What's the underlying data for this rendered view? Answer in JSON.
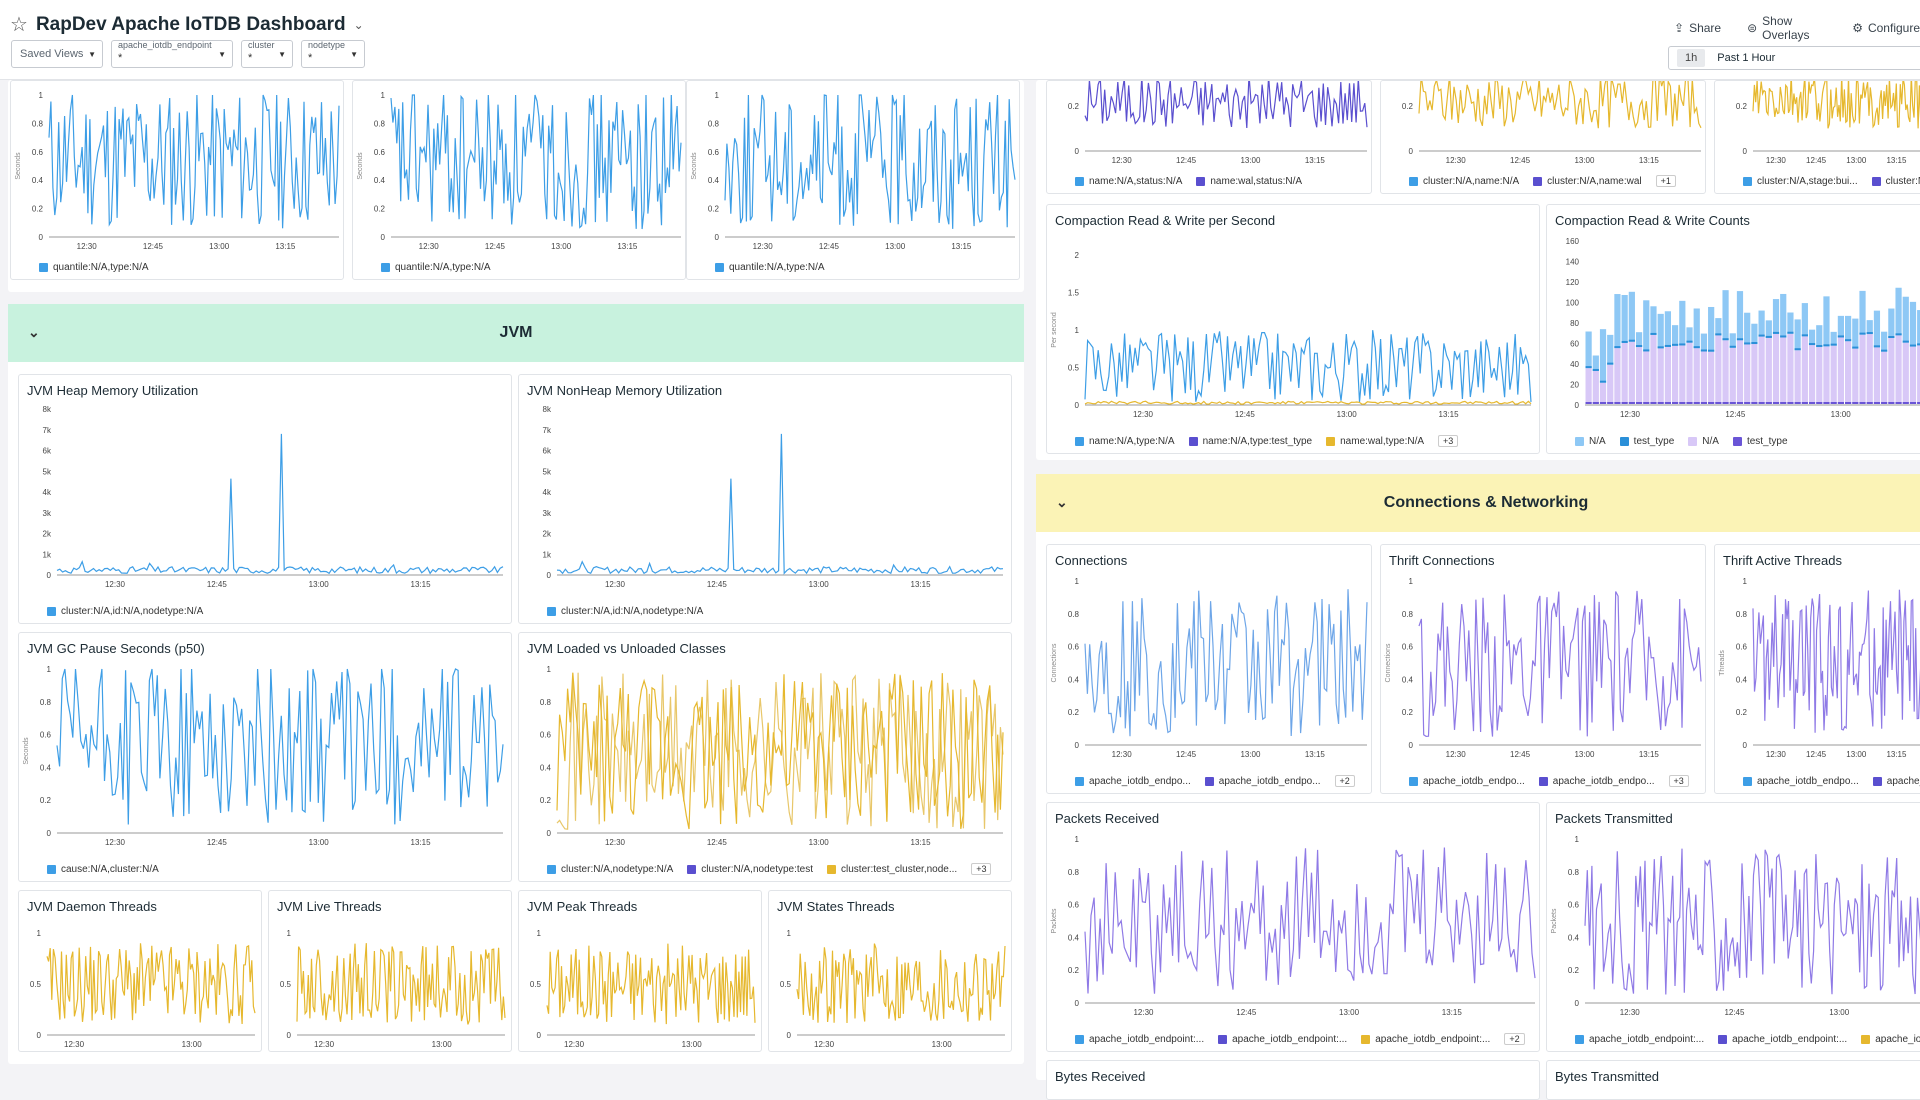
{
  "header": {
    "title": "RapDev Apache IoTDB Dashboard",
    "saved_views": "Saved Views",
    "variables": [
      {
        "label": "apache_iotdb_endpoint",
        "value": "*"
      },
      {
        "label": "cluster",
        "value": "*"
      },
      {
        "label": "nodetype",
        "value": "*"
      }
    ],
    "share": "Share",
    "overlays": "Show Overlays",
    "configure": "Configure",
    "time_chip": "1h",
    "time_range": "Past 1 Hour"
  },
  "groups": {
    "jvm": "JVM",
    "connections": "Connections & Networking"
  },
  "colors": {
    "blue": "#3d9ee6",
    "purple": "#8f7ae6",
    "indigo": "#5a4fcf",
    "gold": "#e6b82e",
    "jvm_header": "#c8f2de",
    "conn_header": "#fbf3b6"
  },
  "panels": {
    "top_left": [
      {
        "ylabel": "Seconds",
        "legend": [
          "quantile:N/A,type:N/A"
        ]
      },
      {
        "ylabel": "Seconds",
        "legend": [
          "quantile:N/A,type:N/A"
        ]
      },
      {
        "ylabel": "Seconds",
        "legend": [
          "quantile:N/A,type:N/A"
        ]
      }
    ],
    "heap": {
      "title": "JVM Heap Memory Utilization",
      "legend": [
        "cluster:N/A,id:N/A,nodetype:N/A"
      ]
    },
    "nonheap": {
      "title": "JVM NonHeap Memory Utilization",
      "legend": [
        "cluster:N/A,id:N/A,nodetype:N/A"
      ]
    },
    "gc": {
      "title": "JVM GC Pause Seconds (p50)",
      "ylabel": "Seconds",
      "legend": [
        "cause:N/A,cluster:N/A"
      ]
    },
    "classes": {
      "title": "JVM Loaded vs Unloaded Classes",
      "legend": [
        "cluster:N/A,nodetype:N/A",
        "cluster:N/A,nodetype:test",
        "cluster:test_cluster,node..."
      ],
      "more": "+3"
    },
    "daemon": {
      "title": "JVM Daemon Threads"
    },
    "live": {
      "title": "JVM Live Threads"
    },
    "peak": {
      "title": "JVM Peak Threads"
    },
    "states": {
      "title": "JVM States Threads"
    },
    "top_right": [
      {
        "legend": [
          "name:N/A,status:N/A",
          "name:wal,status:N/A"
        ]
      },
      {
        "legend": [
          "cluster:N/A,name:N/A",
          "cluster:N/A,name:wal"
        ],
        "more": "+1"
      },
      {
        "legend": [
          "cluster:N/A,stage:bui...",
          "cluster:N/..."
        ]
      }
    ],
    "compaction_rate": {
      "title": "Compaction Read & Write per Second",
      "ylabel": "Per second",
      "legend": [
        "name:N/A,type:N/A",
        "name:N/A,type:test_type",
        "name:wal,type:N/A"
      ],
      "more": "+3"
    },
    "compaction_counts": {
      "title": "Compaction Read & Write Counts",
      "legend": [
        "N/A",
        "test_type",
        "N/A",
        "test_type"
      ]
    },
    "connections": {
      "title": "Connections",
      "ylabel": "Connections",
      "legend": [
        "apache_iotdb_endpo...",
        "apache_iotdb_endpo..."
      ],
      "more": "+2"
    },
    "thrift_conn": {
      "title": "Thrift Connections",
      "ylabel": "Connections",
      "legend": [
        "apache_iotdb_endpo...",
        "apache_iotdb_endpo..."
      ],
      "more": "+3"
    },
    "thrift_threads": {
      "title": "Thrift Active Threads",
      "ylabel": "Threads",
      "legend": [
        "apache_iotdb_endpo...",
        "apache_i..."
      ]
    },
    "packets_rx": {
      "title": "Packets Received",
      "ylabel": "Packets",
      "legend": [
        "apache_iotdb_endpoint:...",
        "apache_iotdb_endpoint:...",
        "apache_iotdb_endpoint:..."
      ],
      "more": "+2"
    },
    "packets_tx": {
      "title": "Packets Transmitted",
      "ylabel": "Packets",
      "legend": [
        "apache_iotdb_endpoint:...",
        "apache_iotdb_endpoint:...",
        "apache_iotd..."
      ]
    },
    "bytes_rx": {
      "title": "Bytes Received"
    },
    "bytes_tx": {
      "title": "Bytes Transmitted"
    }
  },
  "time_ticks": [
    "12:30",
    "12:45",
    "13:00",
    "13:15"
  ],
  "time_ticks_short": [
    "12:30",
    "13:00"
  ],
  "y_ticks_unit": [
    "0",
    "0.2",
    "0.4",
    "0.6",
    "0.8",
    "1"
  ],
  "y_ticks_half": [
    "0",
    "0.5",
    "1"
  ],
  "y_ticks_heap": [
    "0",
    "1k",
    "2k",
    "3k",
    "4k",
    "5k",
    "6k",
    "7k",
    "8k"
  ],
  "y_ticks_rate": [
    "0",
    "0.5",
    "1",
    "1.5",
    "2"
  ],
  "y_ticks_counts": [
    "0",
    "20",
    "40",
    "60",
    "80",
    "100",
    "120",
    "140",
    "160"
  ]
}
